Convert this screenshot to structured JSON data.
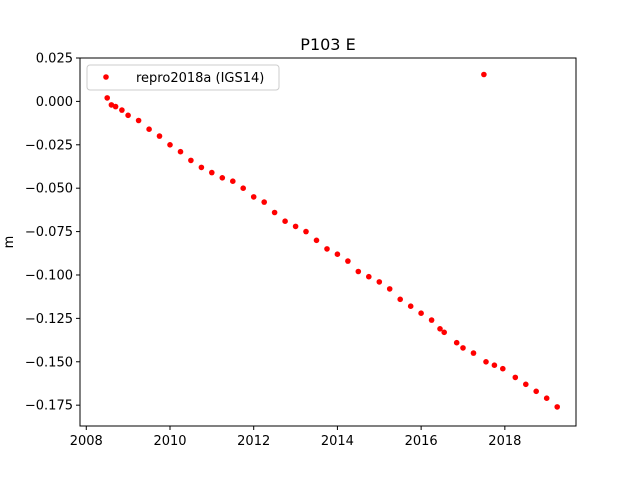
{
  "chart_data": {
    "type": "scatter",
    "title": "P103 E",
    "xlabel": "",
    "ylabel": "m",
    "xlim": [
      2007.85,
      2019.7
    ],
    "ylim": [
      -0.187,
      0.025
    ],
    "xticks": [
      2008,
      2010,
      2012,
      2014,
      2016,
      2018
    ],
    "xtick_labels": [
      "2008",
      "2010",
      "2012",
      "2014",
      "2016",
      "2018"
    ],
    "yticks": [
      0.025,
      0.0,
      -0.025,
      -0.05,
      -0.075,
      -0.1,
      -0.125,
      -0.15,
      -0.175
    ],
    "ytick_labels": [
      "0.025",
      "0.000",
      "−0.025",
      "−0.050",
      "−0.075",
      "−0.100",
      "−0.125",
      "−0.150",
      "−0.175"
    ],
    "grid": false,
    "legend_position": "upper-left",
    "series": [
      {
        "name": "repro2018a (IGS14)",
        "color": "#ff0000",
        "marker": "circle",
        "points": [
          [
            2008.5,
            0.002
          ],
          [
            2008.6,
            -0.002
          ],
          [
            2008.7,
            -0.003
          ],
          [
            2008.85,
            -0.005
          ],
          [
            2009.0,
            -0.008
          ],
          [
            2009.25,
            -0.011
          ],
          [
            2009.5,
            -0.016
          ],
          [
            2009.75,
            -0.02
          ],
          [
            2010.0,
            -0.025
          ],
          [
            2010.25,
            -0.029
          ],
          [
            2010.5,
            -0.034
          ],
          [
            2010.75,
            -0.038
          ],
          [
            2011.0,
            -0.041
          ],
          [
            2011.25,
            -0.044
          ],
          [
            2011.5,
            -0.046
          ],
          [
            2011.75,
            -0.05
          ],
          [
            2012.0,
            -0.055
          ],
          [
            2012.25,
            -0.058
          ],
          [
            2012.5,
            -0.064
          ],
          [
            2012.75,
            -0.069
          ],
          [
            2013.0,
            -0.072
          ],
          [
            2013.25,
            -0.075
          ],
          [
            2013.5,
            -0.08
          ],
          [
            2013.75,
            -0.085
          ],
          [
            2014.0,
            -0.088
          ],
          [
            2014.25,
            -0.092
          ],
          [
            2014.5,
            -0.098
          ],
          [
            2014.75,
            -0.101
          ],
          [
            2015.0,
            -0.104
          ],
          [
            2015.25,
            -0.108
          ],
          [
            2015.5,
            -0.114
          ],
          [
            2015.75,
            -0.118
          ],
          [
            2016.0,
            -0.122
          ],
          [
            2016.25,
            -0.126
          ],
          [
            2016.45,
            -0.131
          ],
          [
            2016.55,
            -0.133
          ],
          [
            2016.85,
            -0.139
          ],
          [
            2017.0,
            -0.142
          ],
          [
            2017.25,
            -0.145
          ],
          [
            2017.5,
            0.0155
          ],
          [
            2017.55,
            -0.15
          ],
          [
            2017.75,
            -0.152
          ],
          [
            2017.95,
            -0.154
          ],
          [
            2018.25,
            -0.159
          ],
          [
            2018.5,
            -0.163
          ],
          [
            2018.75,
            -0.167
          ],
          [
            2019.0,
            -0.171
          ],
          [
            2019.25,
            -0.176
          ]
        ]
      }
    ]
  }
}
